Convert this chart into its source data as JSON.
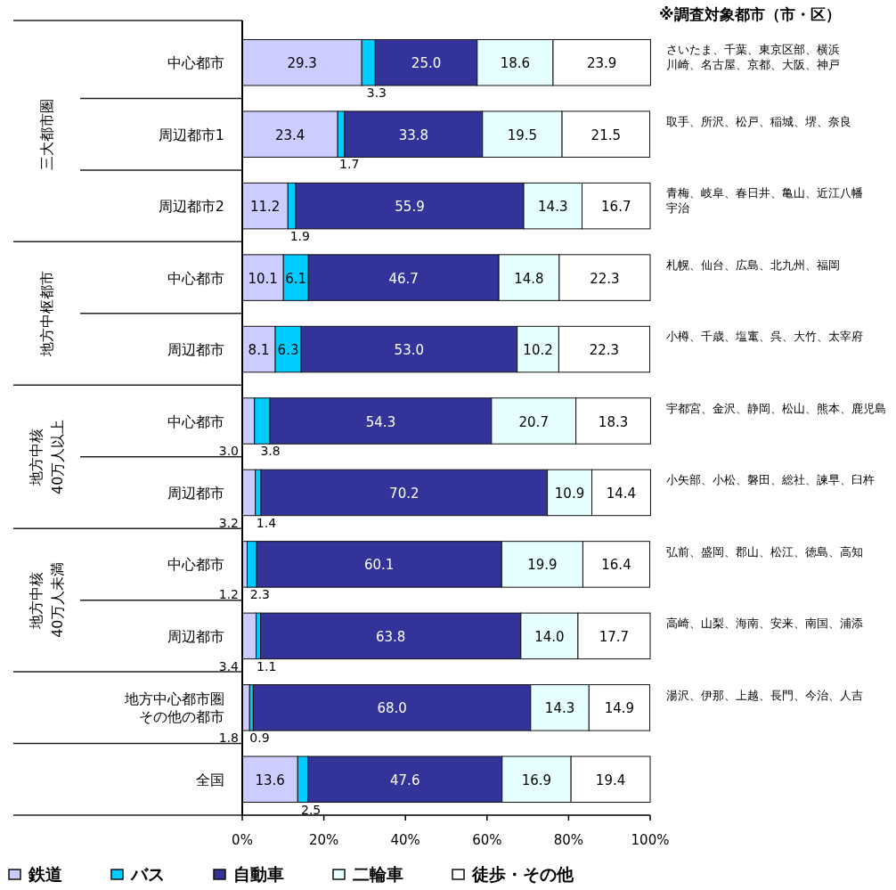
{
  "chart_data": {
    "type": "bar",
    "orientation": "horizontal",
    "stacked": true,
    "categories": [
      "中心都市",
      "周辺都市1",
      "周辺都市2",
      "中心都市",
      "周辺都市",
      "中心都市",
      "周辺都市",
      "中心都市",
      "周辺都市",
      "地方中心都市圏その他の都市",
      "全国"
    ],
    "series": [
      {
        "name": "鉄道",
        "color": "#ccccff",
        "values": [
          29.3,
          23.4,
          11.2,
          10.1,
          8.1,
          3.0,
          3.2,
          1.2,
          3.4,
          1.8,
          13.6
        ],
        "value_labels": [
          "29.3",
          "23.4",
          "11.2",
          "10.1",
          "8.1",
          "3.0",
          "3.2",
          "1.2",
          "3.4",
          "1.8",
          "13.6"
        ]
      },
      {
        "name": "バス",
        "color": "#00ccff",
        "values": [
          3.3,
          1.7,
          1.9,
          6.1,
          6.3,
          3.8,
          1.4,
          2.3,
          1.1,
          0.9,
          2.5
        ],
        "value_labels": [
          "3.3",
          "1.7",
          "1.9",
          "6.1",
          "6.3",
          "3.8",
          "1.4",
          "2.3",
          "1.1",
          "0.9",
          "2.5"
        ]
      },
      {
        "name": "自動車",
        "color": "#333399",
        "values": [
          25.0,
          33.8,
          55.9,
          46.7,
          53.0,
          54.3,
          70.2,
          60.1,
          63.8,
          68.0,
          47.6
        ],
        "value_labels": [
          "25.0",
          "33.8",
          "55.9",
          "46.7",
          "53.0",
          "54.3",
          "70.2",
          "60.1",
          "63.8",
          "68.0",
          "47.6"
        ]
      },
      {
        "name": "二輪車",
        "color": "#e6ffff",
        "values": [
          18.6,
          19.5,
          14.3,
          14.8,
          10.2,
          20.7,
          10.9,
          19.9,
          14.0,
          14.3,
          16.9
        ],
        "value_labels": [
          "18.6",
          "19.5",
          "14.3",
          "14.8",
          "10.2",
          "20.7",
          "10.9",
          "19.9",
          "14.0",
          "14.3",
          "16.9"
        ]
      },
      {
        "name": "徒歩・その他",
        "color": "#ffffff",
        "values": [
          23.9,
          21.5,
          16.7,
          22.3,
          22.3,
          18.3,
          14.4,
          16.4,
          17.7,
          14.9,
          19.4
        ],
        "value_labels": [
          "23.9",
          "21.5",
          "16.7",
          "22.3",
          "22.3",
          "18.3",
          "14.4",
          "16.4",
          "17.7",
          "14.9",
          "19.4"
        ]
      }
    ],
    "xlim": [
      0,
      100
    ],
    "xticks": [
      {
        "value": 0,
        "label": "0%"
      },
      {
        "value": 20,
        "label": "20%"
      },
      {
        "value": 40,
        "label": "40%"
      },
      {
        "value": 60,
        "label": "60%"
      },
      {
        "value": 80,
        "label": "80%"
      },
      {
        "value": 100,
        "label": "100%"
      }
    ],
    "legend": "bottom",
    "annotations": [
      "※調査対象都市（市・区）",
      "さいたま、千葉、東京区部、横浜",
      "川崎、名古屋、京都、大阪、神戸",
      "取手、所沢、松戸、稲城、堺、奈良",
      "青梅、岐阜、春日井、亀山、近江八幡",
      "宇治",
      "札幌、仙台、広島、北九州、福岡",
      "小樽、千歳、塩竃、呉、大竹、太宰府",
      "宇都宮、金沢、静岡、松山、熊本、鹿児島",
      "小矢部、小松、磐田、総社、諫早、臼杵",
      "弘前、盛岡、郡山、松江、徳島、高知",
      "高崎、山梨、海南、安来、南国、浦添",
      "湯沢、伊那、上越、長門、今治、人吉",
      "三大都市圏",
      "地方中枢都市",
      "地方中核\n40万人以上",
      "地方中核\n40万人未満"
    ]
  }
}
